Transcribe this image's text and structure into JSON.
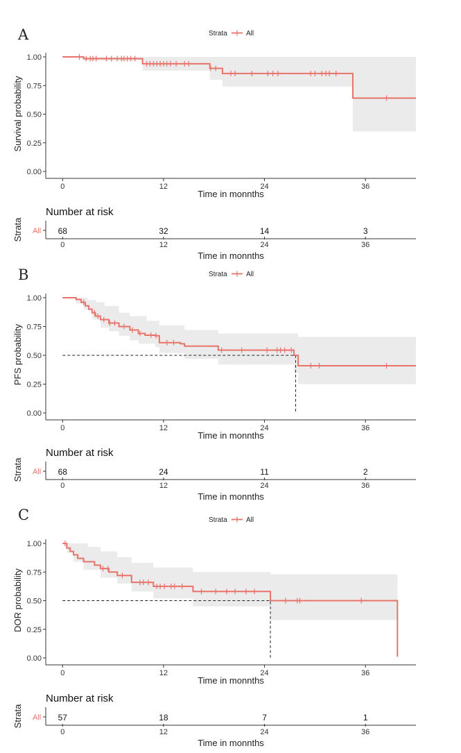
{
  "colors": {
    "curve": "#e8736a",
    "band": "#ebebeb",
    "axis": "#333333",
    "text": "#222222"
  },
  "chart_data": [
    {
      "panel": "A",
      "type": "line",
      "legend_title": "Strata",
      "legend_label": "All",
      "ylabel": "Survival probability",
      "xlabel": "Time in monnths",
      "xlim": [
        -2,
        42
      ],
      "ylim": [
        0,
        1
      ],
      "xticks": [
        0,
        12,
        24,
        36
      ],
      "xtick_labels": [
        "0",
        "12",
        "24",
        "36"
      ],
      "yticks": [
        0,
        0.25,
        0.5,
        0.75,
        1
      ],
      "ytick_labels": [
        "0.00",
        "0.25",
        "0.50",
        "0.75",
        "1.00"
      ],
      "series": [
        {
          "name": "All",
          "steps": [
            [
              0,
              1.0
            ],
            [
              2.5,
              0.985
            ],
            [
              9.5,
              0.94
            ],
            [
              17.5,
              0.9
            ],
            [
              19,
              0.855
            ],
            [
              34.5,
              0.64
            ],
            [
              42,
              0.64
            ]
          ],
          "lower": [
            [
              0,
              1.0
            ],
            [
              2.5,
              0.97
            ],
            [
              9.5,
              0.88
            ],
            [
              17.5,
              0.8
            ],
            [
              19,
              0.74
            ],
            [
              34.5,
              0.35
            ],
            [
              42,
              0.35
            ]
          ],
          "upper": [
            [
              0,
              1.0
            ],
            [
              42,
              1.0
            ]
          ],
          "censor": [
            2,
            2.8,
            3.3,
            3.6,
            4,
            5.2,
            5.8,
            6.5,
            7,
            7.3,
            7.7,
            8.1,
            8.6,
            10,
            10.4,
            10.8,
            11.2,
            11.6,
            12,
            12.4,
            12.8,
            13.5,
            14.5,
            15,
            17.6,
            18.2,
            20,
            20.5,
            22.5,
            24.4,
            25,
            25.6,
            29.5,
            30,
            30.8,
            31.3,
            31.7,
            32.5,
            38.5
          ]
        }
      ],
      "dashed_median": null,
      "risk_table": {
        "title": "Number at risk",
        "strata_title": "Strata",
        "strata_label": "All",
        "times": [
          0,
          12,
          24,
          36
        ],
        "counts": [
          "68",
          "32",
          "14",
          "3"
        ],
        "xlabel": "Time in monnths"
      }
    },
    {
      "panel": "B",
      "type": "line",
      "legend_title": "Strata",
      "legend_label": "All",
      "ylabel": "PFS probability",
      "xlabel": "Time in monnths",
      "xlim": [
        -2,
        42
      ],
      "ylim": [
        0,
        1
      ],
      "xticks": [
        0,
        12,
        24,
        36
      ],
      "xtick_labels": [
        "0",
        "12",
        "24",
        "36"
      ],
      "yticks": [
        0,
        0.25,
        0.5,
        0.75,
        1
      ],
      "ytick_labels": [
        "0.00",
        "0.25",
        "0.50",
        "0.75",
        "1.00"
      ],
      "series": [
        {
          "name": "All",
          "steps": [
            [
              0,
              1.0
            ],
            [
              1.6,
              0.985
            ],
            [
              2.2,
              0.96
            ],
            [
              2.7,
              0.93
            ],
            [
              3.1,
              0.9
            ],
            [
              3.5,
              0.87
            ],
            [
              3.9,
              0.84
            ],
            [
              4.5,
              0.81
            ],
            [
              5.5,
              0.78
            ],
            [
              6.7,
              0.75
            ],
            [
              8,
              0.72
            ],
            [
              9,
              0.69
            ],
            [
              9.8,
              0.675
            ],
            [
              11,
              0.67
            ],
            [
              11.5,
              0.61
            ],
            [
              14,
              0.6
            ],
            [
              14.5,
              0.58
            ],
            [
              18.5,
              0.545
            ],
            [
              27.5,
              0.5
            ],
            [
              28,
              0.41
            ],
            [
              42,
              0.41
            ]
          ],
          "lower": [
            [
              0,
              1.0
            ],
            [
              1.6,
              0.95
            ],
            [
              2.5,
              0.9
            ],
            [
              3.5,
              0.81
            ],
            [
              4.5,
              0.74
            ],
            [
              5.5,
              0.71
            ],
            [
              6.7,
              0.67
            ],
            [
              8,
              0.63
            ],
            [
              9,
              0.6
            ],
            [
              11,
              0.57
            ],
            [
              11.5,
              0.52
            ],
            [
              14.5,
              0.47
            ],
            [
              18.5,
              0.42
            ],
            [
              27.5,
              0.35
            ],
            [
              28,
              0.25
            ],
            [
              42,
              0.25
            ]
          ],
          "upper": [
            [
              0,
              1.0
            ],
            [
              2,
              1.0
            ],
            [
              3,
              0.98
            ],
            [
              4,
              0.96
            ],
            [
              5,
              0.93
            ],
            [
              6.7,
              0.87
            ],
            [
              8,
              0.84
            ],
            [
              10,
              0.8
            ],
            [
              11.5,
              0.76
            ],
            [
              14.5,
              0.72
            ],
            [
              18.5,
              0.69
            ],
            [
              28,
              0.66
            ],
            [
              42,
              0.66
            ]
          ],
          "censor": [
            2.5,
            3.8,
            4.2,
            4.9,
            5.6,
            6.2,
            7.3,
            8.3,
            9.2,
            10.5,
            11.1,
            12.4,
            13.2,
            18.9,
            21.3,
            24.3,
            25.5,
            25.9,
            26.4,
            27.2,
            29.5,
            30.5,
            38.5
          ]
        }
      ],
      "dashed_median": {
        "y": 0.5,
        "x": 27.7
      },
      "risk_table": {
        "title": "Number at risk",
        "strata_title": "Strata",
        "strata_label": "All",
        "times": [
          0,
          12,
          24,
          36
        ],
        "counts": [
          "68",
          "24",
          "11",
          "2"
        ],
        "xlabel": "Time in monnths"
      }
    },
    {
      "panel": "C",
      "type": "line",
      "legend_title": "Strata",
      "legend_label": "All",
      "ylabel": "DOR probability",
      "xlabel": "Time in monnths",
      "xlim": [
        -2,
        42
      ],
      "ylim": [
        0,
        1
      ],
      "xticks": [
        0,
        12,
        24,
        36
      ],
      "xtick_labels": [
        "0",
        "12",
        "24",
        "36"
      ],
      "yticks": [
        0,
        0.25,
        0.5,
        0.75,
        1
      ],
      "ytick_labels": [
        "0.00",
        "0.25",
        "0.50",
        "0.75",
        "1.00"
      ],
      "series": [
        {
          "name": "All",
          "steps": [
            [
              0,
              1.0
            ],
            [
              0.5,
              0.96
            ],
            [
              0.9,
              0.93
            ],
            [
              1.3,
              0.9
            ],
            [
              1.8,
              0.87
            ],
            [
              2.5,
              0.84
            ],
            [
              3.8,
              0.81
            ],
            [
              4.5,
              0.78
            ],
            [
              5.5,
              0.75
            ],
            [
              6.5,
              0.72
            ],
            [
              8.2,
              0.66
            ],
            [
              10.8,
              0.625
            ],
            [
              15.5,
              0.58
            ],
            [
              24.7,
              0.5
            ],
            [
              39.8,
              0.5
            ],
            [
              39.8,
              0.01
            ]
          ],
          "lower": [
            [
              0,
              1.0
            ],
            [
              0.5,
              0.92
            ],
            [
              1.3,
              0.84
            ],
            [
              2.5,
              0.77
            ],
            [
              4.5,
              0.7
            ],
            [
              6.5,
              0.65
            ],
            [
              8.2,
              0.58
            ],
            [
              10.8,
              0.52
            ],
            [
              15.5,
              0.45
            ],
            [
              24.7,
              0.33
            ],
            [
              39.8,
              0.33
            ]
          ],
          "upper": [
            [
              0,
              1.0
            ],
            [
              2,
              1.0
            ],
            [
              3,
              0.97
            ],
            [
              4.5,
              0.93
            ],
            [
              6.5,
              0.88
            ],
            [
              8.2,
              0.83
            ],
            [
              10.8,
              0.79
            ],
            [
              15.5,
              0.75
            ],
            [
              24.7,
              0.73
            ],
            [
              39.8,
              0.73
            ]
          ],
          "censor": [
            0.3,
            4.8,
            5.4,
            7.1,
            9.2,
            9.6,
            10.2,
            11.2,
            11.6,
            12.1,
            12.9,
            13.3,
            14.2,
            16.5,
            18.2,
            19.5,
            20.5,
            21.8,
            22.8,
            26.5,
            27.9,
            28.2,
            35.5
          ]
        }
      ],
      "dashed_median": {
        "y": 0.5,
        "x": 24.7
      },
      "risk_table": {
        "title": "Number at risk",
        "strata_title": "Strata",
        "strata_label": "All",
        "times": [
          0,
          12,
          24,
          36
        ],
        "counts": [
          "57",
          "18",
          "7",
          "1"
        ],
        "xlabel": "Time in monnths"
      }
    }
  ]
}
